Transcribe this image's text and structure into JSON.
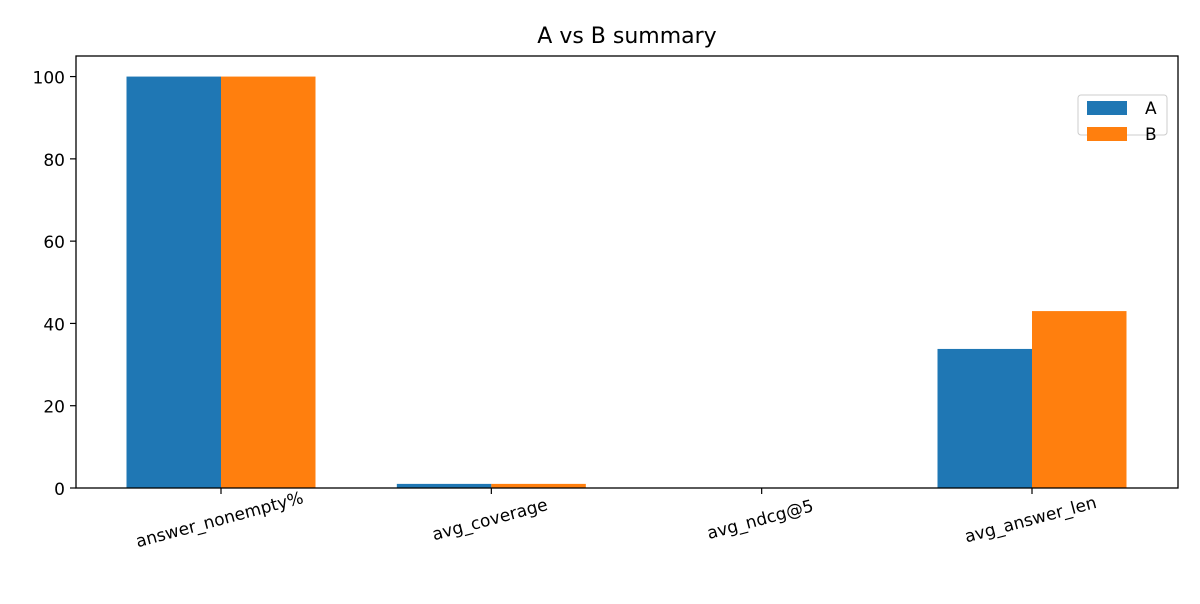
{
  "chart_data": {
    "type": "bar",
    "title": "A vs B summary",
    "xlabel": "",
    "ylabel": "",
    "categories": [
      "answer_nonempty%",
      "avg_coverage",
      "avg_ndcg@5",
      "avg_answer_len"
    ],
    "series": [
      {
        "name": "A",
        "values": [
          100,
          1,
          0,
          33.8
        ],
        "color": "#1f77b4"
      },
      {
        "name": "B",
        "values": [
          100,
          1,
          0,
          43.0
        ],
        "color": "#ff7f0e"
      }
    ],
    "ylim": [
      0,
      105
    ],
    "yticks": [
      0,
      20,
      40,
      60,
      80,
      100
    ],
    "grid": false,
    "legend_position": "top-right"
  }
}
